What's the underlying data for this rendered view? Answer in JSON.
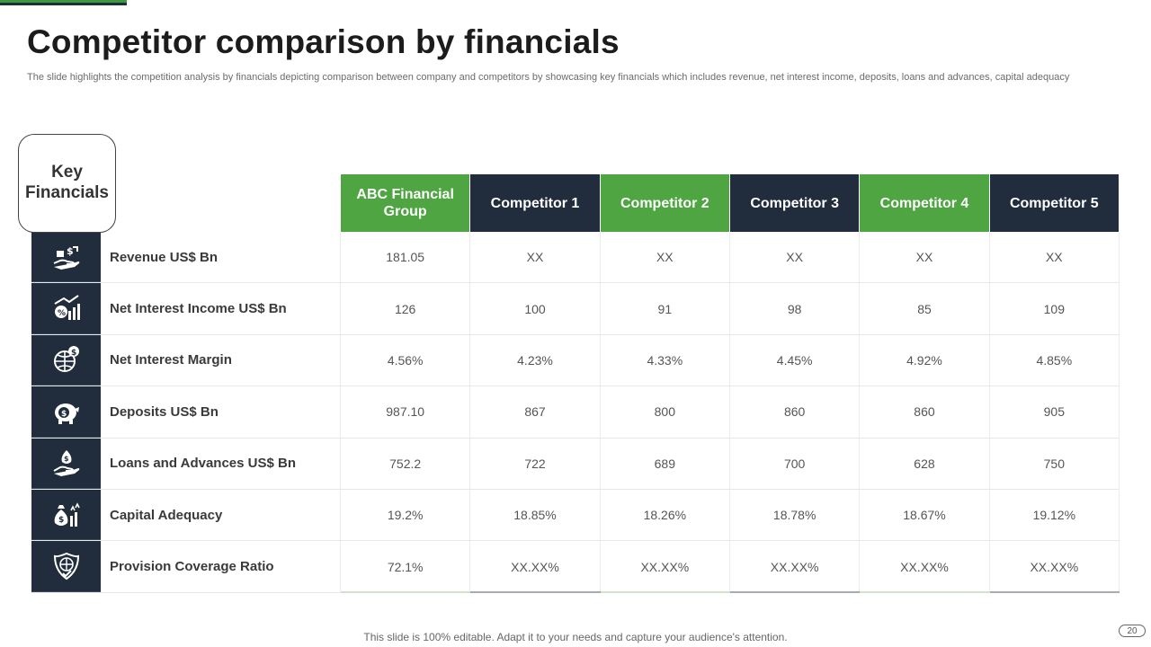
{
  "title": "Competitor comparison by financials",
  "subtitle": "The slide highlights the competition analysis by financials depicting comparison between company and competitors by showcasing key financials which includes revenue, net interest income, deposits, loans and advances, capital adequacy",
  "key_label": "Key Financials",
  "columns": [
    "ABC Financial Group",
    "Competitor 1",
    "Competitor 2",
    "Competitor 3",
    "Competitor 4",
    "Competitor 5"
  ],
  "rows": [
    {
      "icon": "money-hand-icon",
      "label": "Revenue US$ Bn",
      "values": [
        "181.05",
        "XX",
        "XX",
        "XX",
        "XX",
        "XX"
      ]
    },
    {
      "icon": "growth-chart-icon",
      "label": "Net Interest Income US$ Bn",
      "values": [
        "126",
        "100",
        "91",
        "98",
        "85",
        "109"
      ]
    },
    {
      "icon": "globe-dollar-icon",
      "label": "Net Interest Margin",
      "values": [
        "4.56%",
        "4.23%",
        "4.33%",
        "4.45%",
        "4.92%",
        "4.85%"
      ]
    },
    {
      "icon": "piggy-bank-icon",
      "label": "Deposits US$ Bn",
      "values": [
        "987.10",
        "867",
        "800",
        "860",
        "860",
        "905"
      ]
    },
    {
      "icon": "loan-hand-icon",
      "label": "Loans and Advances US$ Bn",
      "values": [
        "752.2",
        "722",
        "689",
        "700",
        "628",
        "750"
      ]
    },
    {
      "icon": "money-bag-icon",
      "label": "Capital Adequacy",
      "values": [
        "19.2%",
        "18.85%",
        "18.26%",
        "18.78%",
        "18.67%",
        "19.12%"
      ]
    },
    {
      "icon": "globe-shield-icon",
      "label": "Provision Coverage Ratio",
      "values": [
        "72.1%",
        "XX.XX%",
        "XX.XX%",
        "XX.XX%",
        "XX.XX%",
        "XX.XX%"
      ]
    }
  ],
  "footer": "This slide is 100% editable. Adapt it to your needs and capture your audience's attention.",
  "page_number": "20",
  "colors": {
    "green": "#4ea541",
    "navy": "#212d3d"
  }
}
